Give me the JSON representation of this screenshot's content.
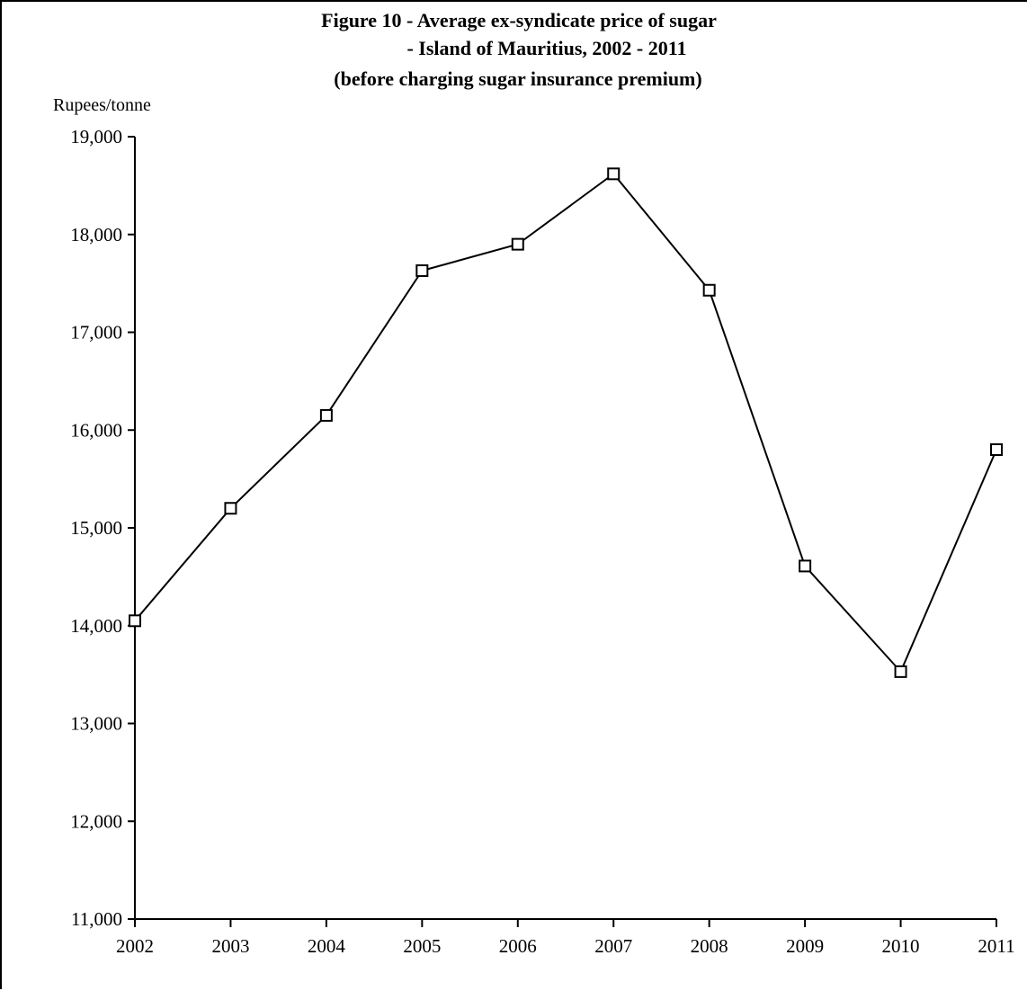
{
  "chart_data": {
    "type": "line",
    "title_lines": [
      "Figure 10 - Average ex-syndicate price of sugar",
      "- Island of Mauritius, 2002 - 2011",
      "(before charging sugar insurance premium)"
    ],
    "ylabel": "Rupees/tonne",
    "xlabel": "",
    "categories": [
      "2002",
      "2003",
      "2004",
      "2005",
      "2006",
      "2007",
      "2008",
      "2009",
      "2010",
      "2011"
    ],
    "series": [
      {
        "values": [
          14050,
          15200,
          16150,
          17630,
          17900,
          18620,
          17430,
          14610,
          13530,
          15800
        ],
        "marker": "open-square",
        "color": "#000000"
      }
    ],
    "ylim": [
      11000,
      19000
    ],
    "yticks": [
      11000,
      12000,
      13000,
      14000,
      15000,
      16000,
      17000,
      18000,
      19000
    ],
    "ytick_labels": [
      "11,000",
      "12,000",
      "13,000",
      "14,000",
      "15,000",
      "16,000",
      "17,000",
      "18,000",
      "19,000"
    ],
    "grid": false,
    "legend": "none"
  }
}
